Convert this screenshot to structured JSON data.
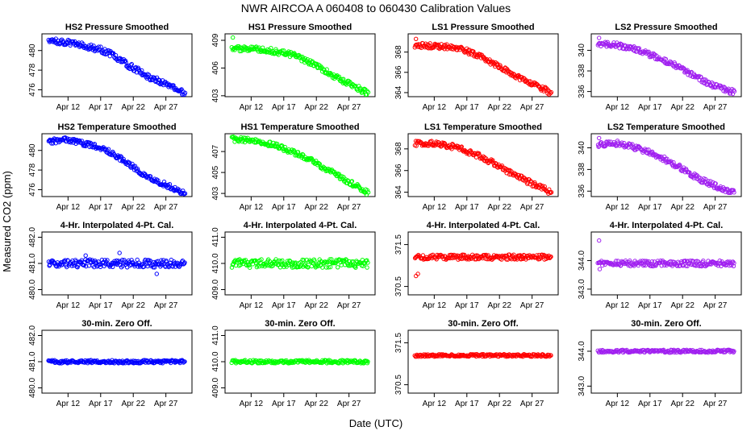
{
  "figure": {
    "title": "NWR   AIRCOA A   060408 to 060430   Calibration Values",
    "xlabel": "Date (UTC)",
    "ylabel": "Measured CO2 (ppm)"
  },
  "chart_data": [
    {
      "type": "scatter",
      "title": "HS2 Pressure Smoothed",
      "color": "#0000ff",
      "xlim": [
        8,
        31
      ],
      "ylim": [
        475.3,
        481.7
      ],
      "xticks": [
        12,
        17,
        22,
        27
      ],
      "xtick_labels": [
        "Apr 12",
        "Apr 17",
        "Apr 22",
        "Apr 27"
      ],
      "yticks": [
        476,
        478,
        480
      ],
      "ytick_labels": [
        "476",
        "478",
        "480"
      ],
      "trend": [
        [
          9,
          481.1
        ],
        [
          12,
          480.8
        ],
        [
          15,
          480.4
        ],
        [
          17,
          480.1
        ],
        [
          19,
          479.5
        ],
        [
          21,
          478.6
        ],
        [
          23,
          477.9
        ],
        [
          25,
          477.1
        ],
        [
          27,
          476.6
        ],
        [
          29,
          476.0
        ],
        [
          30,
          475.5
        ]
      ],
      "noise": 0.3,
      "outliers": []
    },
    {
      "type": "scatter",
      "title": "HS1 Pressure Smoothed",
      "color": "#00ff00",
      "xlim": [
        8,
        31
      ],
      "ylim": [
        402.9,
        409.7
      ],
      "xticks": [
        12,
        17,
        22,
        27
      ],
      "xtick_labels": [
        "Apr 12",
        "Apr 17",
        "Apr 22",
        "Apr 27"
      ],
      "yticks": [
        403,
        406,
        409
      ],
      "ytick_labels": [
        "403",
        "406",
        "409"
      ],
      "trend": [
        [
          9,
          408.1
        ],
        [
          12,
          408.1
        ],
        [
          15,
          407.9
        ],
        [
          17,
          407.6
        ],
        [
          19,
          407.3
        ],
        [
          21,
          406.6
        ],
        [
          23,
          405.8
        ],
        [
          25,
          405.0
        ],
        [
          27,
          404.3
        ],
        [
          29,
          403.6
        ],
        [
          30,
          403.2
        ]
      ],
      "noise": 0.3,
      "outliers": [
        [
          9.2,
          409.3
        ]
      ]
    },
    {
      "type": "scatter",
      "title": "LS1 Pressure Smoothed",
      "color": "#ff0000",
      "xlim": [
        8,
        31
      ],
      "ylim": [
        363.6,
        369.8
      ],
      "xticks": [
        12,
        17,
        22,
        27
      ],
      "xtick_labels": [
        "Apr 12",
        "Apr 17",
        "Apr 22",
        "Apr 27"
      ],
      "yticks": [
        364,
        366,
        368
      ],
      "ytick_labels": [
        "364",
        "366",
        "368"
      ],
      "trend": [
        [
          9,
          368.7
        ],
        [
          12,
          368.6
        ],
        [
          15,
          368.5
        ],
        [
          17,
          368.1
        ],
        [
          19,
          367.6
        ],
        [
          21,
          366.9
        ],
        [
          23,
          366.2
        ],
        [
          25,
          365.5
        ],
        [
          27,
          364.9
        ],
        [
          29,
          364.3
        ],
        [
          30,
          363.9
        ]
      ],
      "noise": 0.25,
      "outliers": [
        [
          9.2,
          369.3
        ]
      ]
    },
    {
      "type": "scatter",
      "title": "LS2 Pressure Smoothed",
      "color": "#a020f0",
      "xlim": [
        8,
        31
      ],
      "ylim": [
        335.5,
        341.6
      ],
      "xticks": [
        12,
        17,
        22,
        27
      ],
      "xtick_labels": [
        "Apr 12",
        "Apr 17",
        "Apr 22",
        "Apr 27"
      ],
      "yticks": [
        336,
        338,
        340
      ],
      "ytick_labels": [
        "336",
        "338",
        "340"
      ],
      "trend": [
        [
          9,
          340.6
        ],
        [
          12,
          340.5
        ],
        [
          15,
          340.1
        ],
        [
          17,
          339.6
        ],
        [
          19,
          339.1
        ],
        [
          21,
          338.5
        ],
        [
          23,
          337.8
        ],
        [
          25,
          337.1
        ],
        [
          27,
          336.5
        ],
        [
          29,
          336.1
        ],
        [
          30,
          335.9
        ]
      ],
      "noise": 0.25,
      "outliers": [
        [
          9.2,
          341.2
        ]
      ]
    },
    {
      "type": "scatter",
      "title": "HS2 Temperature Smoothed",
      "color": "#0000ff",
      "xlim": [
        8,
        31
      ],
      "ylim": [
        475.3,
        481.7
      ],
      "xticks": [
        12,
        17,
        22,
        27
      ],
      "xtick_labels": [
        "Apr 12",
        "Apr 17",
        "Apr 22",
        "Apr 27"
      ],
      "yticks": [
        476,
        478,
        480
      ],
      "ytick_labels": [
        "476",
        "478",
        "480"
      ],
      "trend": [
        [
          9,
          480.9
        ],
        [
          12,
          481.1
        ],
        [
          15,
          480.6
        ],
        [
          17,
          480.3
        ],
        [
          19,
          479.6
        ],
        [
          21,
          478.8
        ],
        [
          23,
          477.8
        ],
        [
          25,
          477.0
        ],
        [
          27,
          476.5
        ],
        [
          29,
          475.9
        ],
        [
          30,
          475.5
        ]
      ],
      "noise": 0.25,
      "outliers": []
    },
    {
      "type": "scatter",
      "title": "HS1 Temperature Smoothed",
      "color": "#00ff00",
      "xlim": [
        8,
        31
      ],
      "ylim": [
        402.7,
        408.7
      ],
      "xticks": [
        12,
        17,
        22,
        27
      ],
      "xtick_labels": [
        "Apr 12",
        "Apr 17",
        "Apr 22",
        "Apr 27"
      ],
      "yticks": [
        403,
        405,
        407
      ],
      "ytick_labels": [
        "403",
        "405",
        "407"
      ],
      "trend": [
        [
          9,
          408.2
        ],
        [
          12,
          408.1
        ],
        [
          15,
          407.7
        ],
        [
          17,
          407.3
        ],
        [
          19,
          406.8
        ],
        [
          21,
          406.2
        ],
        [
          23,
          405.5
        ],
        [
          25,
          404.8
        ],
        [
          27,
          404.1
        ],
        [
          29,
          403.4
        ],
        [
          30,
          403.0
        ]
      ],
      "noise": 0.25,
      "outliers": []
    },
    {
      "type": "scatter",
      "title": "LS1 Temperature Smoothed",
      "color": "#ff0000",
      "xlim": [
        8,
        31
      ],
      "ylim": [
        363.6,
        369.4
      ],
      "xticks": [
        12,
        17,
        22,
        27
      ],
      "xtick_labels": [
        "Apr 12",
        "Apr 17",
        "Apr 22",
        "Apr 27"
      ],
      "yticks": [
        364,
        366,
        368
      ],
      "ytick_labels": [
        "364",
        "366",
        "368"
      ],
      "trend": [
        [
          9,
          368.5
        ],
        [
          12,
          368.5
        ],
        [
          15,
          368.2
        ],
        [
          17,
          367.8
        ],
        [
          19,
          367.3
        ],
        [
          21,
          366.7
        ],
        [
          23,
          366.0
        ],
        [
          25,
          365.4
        ],
        [
          27,
          364.8
        ],
        [
          29,
          364.3
        ],
        [
          30,
          363.9
        ]
      ],
      "noise": 0.25,
      "outliers": []
    },
    {
      "type": "scatter",
      "title": "LS2 Temperature Smoothed",
      "color": "#a020f0",
      "xlim": [
        8,
        31
      ],
      "ylim": [
        335.5,
        341.3
      ],
      "xticks": [
        12,
        17,
        22,
        27
      ],
      "xtick_labels": [
        "Apr 12",
        "Apr 17",
        "Apr 22",
        "Apr 27"
      ],
      "yticks": [
        336,
        338,
        340
      ],
      "ytick_labels": [
        "336",
        "338",
        "340"
      ],
      "trend": [
        [
          9,
          340.3
        ],
        [
          12,
          340.4
        ],
        [
          15,
          340.0
        ],
        [
          17,
          339.6
        ],
        [
          19,
          339.0
        ],
        [
          21,
          338.4
        ],
        [
          23,
          337.7
        ],
        [
          25,
          337.0
        ],
        [
          27,
          336.5
        ],
        [
          29,
          336.0
        ],
        [
          30,
          335.8
        ]
      ],
      "noise": 0.25,
      "outliers": [
        [
          9.2,
          340.9
        ]
      ]
    },
    {
      "type": "scatter",
      "title": "4-Hr. Interpolated 4-Pt. Cal.",
      "color": "#0000ff",
      "xlim": [
        8,
        31
      ],
      "ylim": [
        479.8,
        482.2
      ],
      "xticks": [
        12,
        17,
        22,
        27
      ],
      "xtick_labels": [
        "Apr 12",
        "Apr 17",
        "Apr 22",
        "Apr 27"
      ],
      "yticks": [
        480,
        481,
        482
      ],
      "ytick_labels": [
        "480.0",
        "481.0",
        "482.0"
      ],
      "trend": [
        [
          9,
          481.0
        ],
        [
          30,
          481.0
        ]
      ],
      "noise": 0.15,
      "outliers": [
        [
          19.9,
          481.4
        ],
        [
          25.6,
          480.6
        ],
        [
          14.7,
          481.3
        ]
      ]
    },
    {
      "type": "scatter",
      "title": "4-Hr. Interpolated 4-Pt. Cal.",
      "color": "#00ff00",
      "xlim": [
        8,
        31
      ],
      "ylim": [
        408.8,
        411.2
      ],
      "xticks": [
        12,
        17,
        22,
        27
      ],
      "xtick_labels": [
        "Apr 12",
        "Apr 17",
        "Apr 22",
        "Apr 27"
      ],
      "yticks": [
        409,
        410,
        411
      ],
      "ytick_labels": [
        "409.0",
        "410.0",
        "411.0"
      ],
      "trend": [
        [
          9,
          410.0
        ],
        [
          30,
          410.0
        ]
      ],
      "noise": 0.16,
      "outliers": []
    },
    {
      "type": "scatter",
      "title": "4-Hr. Interpolated 4-Pt. Cal.",
      "color": "#ff0000",
      "xlim": [
        8,
        31
      ],
      "ylim": [
        370.3,
        371.8
      ],
      "xticks": [
        12,
        17,
        22,
        27
      ],
      "xtick_labels": [
        "Apr 12",
        "Apr 17",
        "Apr 22",
        "Apr 27"
      ],
      "yticks": [
        370.5,
        371.5
      ],
      "ytick_labels": [
        "370.5",
        "371.5"
      ],
      "trend": [
        [
          9,
          371.2
        ],
        [
          30,
          371.2
        ]
      ],
      "noise": 0.06,
      "outliers": [
        [
          9.2,
          370.75
        ],
        [
          9.5,
          370.8
        ]
      ]
    },
    {
      "type": "scatter",
      "title": "4-Hr. Interpolated 4-Pt. Cal.",
      "color": "#a020f0",
      "xlim": [
        8,
        31
      ],
      "ylim": [
        342.8,
        345.0
      ],
      "xticks": [
        12,
        17,
        22,
        27
      ],
      "xtick_labels": [
        "Apr 12",
        "Apr 17",
        "Apr 22",
        "Apr 27"
      ],
      "yticks": [
        343,
        344
      ],
      "ytick_labels": [
        "343.0",
        "344.0"
      ],
      "trend": [
        [
          9,
          343.9
        ],
        [
          30,
          343.9
        ]
      ],
      "noise": 0.1,
      "outliers": [
        [
          9.2,
          344.7
        ],
        [
          9.3,
          343.7
        ]
      ]
    },
    {
      "type": "scatter",
      "title": "30-min. Zero Off.",
      "color": "#0000ff",
      "xlim": [
        8,
        31
      ],
      "ylim": [
        479.8,
        482.2
      ],
      "xticks": [
        12,
        17,
        22,
        27
      ],
      "xtick_labels": [
        "Apr 12",
        "Apr 17",
        "Apr 22",
        "Apr 27"
      ],
      "yticks": [
        480,
        481,
        482
      ],
      "ytick_labels": [
        "480.0",
        "481.0",
        "482.0"
      ],
      "trend": [
        [
          9,
          481.0
        ],
        [
          30,
          481.0
        ]
      ],
      "noise": 0.06,
      "outliers": []
    },
    {
      "type": "scatter",
      "title": "30-min. Zero Off.",
      "color": "#00ff00",
      "xlim": [
        8,
        31
      ],
      "ylim": [
        408.8,
        411.2
      ],
      "xticks": [
        12,
        17,
        22,
        27
      ],
      "xtick_labels": [
        "Apr 12",
        "Apr 17",
        "Apr 22",
        "Apr 27"
      ],
      "yticks": [
        409,
        410,
        411
      ],
      "ytick_labels": [
        "409.0",
        "410.0",
        "411.0"
      ],
      "trend": [
        [
          9,
          410.0
        ],
        [
          30,
          410.0
        ]
      ],
      "noise": 0.06,
      "outliers": []
    },
    {
      "type": "scatter",
      "title": "30-min. Zero Off.",
      "color": "#ff0000",
      "xlim": [
        8,
        31
      ],
      "ylim": [
        370.3,
        371.8
      ],
      "xticks": [
        12,
        17,
        22,
        27
      ],
      "xtick_labels": [
        "Apr 12",
        "Apr 17",
        "Apr 22",
        "Apr 27"
      ],
      "yticks": [
        370.5,
        371.5
      ],
      "ytick_labels": [
        "370.5",
        "371.5"
      ],
      "trend": [
        [
          9,
          371.2
        ],
        [
          30,
          371.2
        ]
      ],
      "noise": 0.03,
      "outliers": []
    },
    {
      "type": "scatter",
      "title": "30-min. Zero Off.",
      "color": "#a020f0",
      "xlim": [
        8,
        31
      ],
      "ylim": [
        342.8,
        344.6
      ],
      "xticks": [
        12,
        17,
        22,
        27
      ],
      "xtick_labels": [
        "Apr 12",
        "Apr 17",
        "Apr 22",
        "Apr 27"
      ],
      "yticks": [
        343,
        344
      ],
      "ytick_labels": [
        "343.0",
        "344.0"
      ],
      "trend": [
        [
          9,
          344.0
        ],
        [
          30,
          344.0
        ]
      ],
      "noise": 0.04,
      "outliers": []
    }
  ]
}
